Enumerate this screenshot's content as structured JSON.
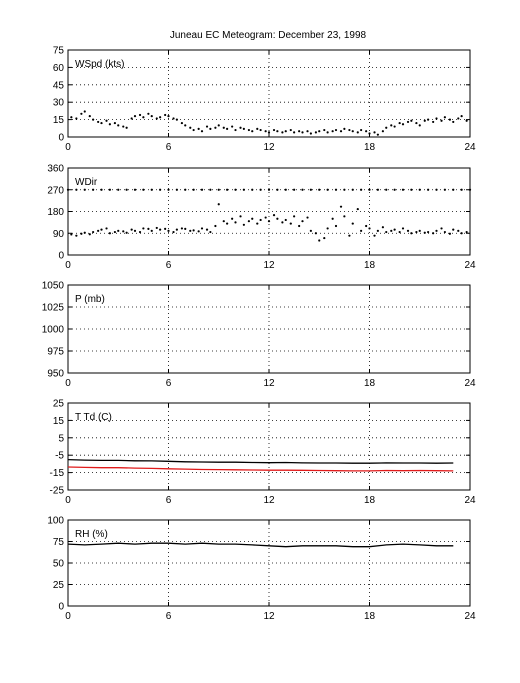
{
  "figure": {
    "title": "Juneau EC Meteogram:   December 23, 1998"
  },
  "chart_data": [
    {
      "type": "scatter",
      "panel_label": "WSpd (kts)",
      "xlim": [
        0,
        24
      ],
      "xticks": [
        0,
        6,
        12,
        18,
        24
      ],
      "ylim": [
        0,
        75
      ],
      "yticks": [
        0,
        15,
        30,
        45,
        60,
        75
      ],
      "grid": true,
      "series": [
        {
          "color": "#000000",
          "style": "dots",
          "x": [
            0.2,
            0.5,
            0.8,
            1.0,
            1.3,
            1.5,
            1.8,
            2.0,
            2.3,
            2.5,
            2.8,
            3.0,
            3.3,
            3.5,
            3.8,
            4.0,
            4.3,
            4.5,
            4.8,
            5.0,
            5.3,
            5.5,
            5.8,
            6.0,
            6.3,
            6.5,
            6.8,
            7.0,
            7.3,
            7.5,
            7.8,
            8.0,
            8.3,
            8.5,
            8.8,
            9.0,
            9.3,
            9.5,
            9.8,
            10.0,
            10.3,
            10.5,
            10.8,
            11.0,
            11.3,
            11.5,
            11.8,
            12.0,
            12.3,
            12.5,
            12.8,
            13.0,
            13.3,
            13.5,
            13.8,
            14.0,
            14.3,
            14.5,
            14.8,
            15.0,
            15.3,
            15.5,
            15.8,
            16.0,
            16.3,
            16.5,
            16.8,
            17.0,
            17.3,
            17.5,
            17.8,
            18.0,
            18.3,
            18.5,
            18.8,
            19.0,
            19.3,
            19.5,
            19.8,
            20.0,
            20.3,
            20.5,
            20.8,
            21.0,
            21.3,
            21.5,
            21.8,
            22.0,
            22.3,
            22.5,
            22.8,
            23.0,
            23.3,
            23.5,
            23.8
          ],
          "y": [
            17,
            16,
            20,
            22,
            18,
            15,
            13,
            12,
            14,
            11,
            12,
            10,
            9,
            8,
            16,
            18,
            19,
            17,
            20,
            18,
            16,
            17,
            19,
            18,
            16,
            15,
            12,
            10,
            8,
            6,
            7,
            5,
            9,
            7,
            8,
            10,
            8,
            7,
            9,
            6,
            8,
            7,
            6,
            5,
            7,
            6,
            5,
            4,
            6,
            5,
            4,
            5,
            6,
            4,
            5,
            4,
            5,
            3,
            4,
            5,
            6,
            4,
            5,
            6,
            5,
            7,
            6,
            5,
            4,
            6,
            5,
            3,
            4,
            2,
            5,
            8,
            10,
            9,
            12,
            11,
            13,
            14,
            12,
            10,
            14,
            15,
            13,
            16,
            14,
            17,
            15,
            13,
            16,
            18,
            14
          ]
        }
      ]
    },
    {
      "type": "scatter",
      "panel_label": "WDir",
      "xlim": [
        0,
        24
      ],
      "xticks": [
        0,
        6,
        12,
        18,
        24
      ],
      "ylim": [
        0,
        360
      ],
      "yticks": [
        0,
        90,
        180,
        270,
        360
      ],
      "grid": true,
      "series": [
        {
          "color": "#000000",
          "style": "dots",
          "x": [
            0.2,
            0.5,
            0.8,
            1.0,
            1.3,
            1.5,
            1.8,
            2.0,
            2.3,
            2.5,
            2.8,
            3.0,
            3.3,
            3.5,
            3.8,
            4.0,
            4.3,
            4.5,
            4.8,
            5.0,
            5.3,
            5.5,
            5.8,
            6.0,
            6.3,
            6.5,
            6.8,
            7.0,
            7.3,
            7.5,
            7.8,
            8.0,
            8.3,
            8.5,
            8.8,
            9.0,
            9.3,
            9.5,
            9.8,
            10.0,
            10.3,
            10.5,
            10.8,
            11.0,
            11.3,
            11.5,
            11.8,
            12.0,
            12.3,
            12.5,
            12.8,
            13.0,
            13.3,
            13.5,
            13.8,
            14.0,
            14.3,
            14.5,
            14.8,
            15.0,
            15.3,
            15.5,
            15.8,
            16.0,
            16.3,
            16.5,
            16.8,
            17.0,
            17.3,
            17.5,
            17.8,
            18.0,
            18.3,
            18.5,
            18.8,
            19.0,
            19.3,
            19.5,
            19.8,
            20.0,
            20.3,
            20.5,
            20.8,
            21.0,
            21.3,
            21.5,
            21.8,
            22.0,
            22.3,
            22.5,
            22.8,
            23.0,
            23.3,
            23.5,
            23.8
          ],
          "y": [
            85,
            80,
            88,
            92,
            86,
            95,
            100,
            105,
            110,
            90,
            95,
            100,
            98,
            92,
            105,
            100,
            95,
            110,
            108,
            100,
            112,
            105,
            108,
            100,
            95,
            105,
            110,
            108,
            100,
            102,
            98,
            110,
            105,
            95,
            120,
            210,
            140,
            130,
            150,
            135,
            160,
            125,
            140,
            150,
            130,
            145,
            155,
            140,
            165,
            150,
            135,
            145,
            130,
            160,
            120,
            140,
            155,
            100,
            90,
            60,
            70,
            110,
            150,
            120,
            200,
            160,
            80,
            130,
            190,
            100,
            120,
            110,
            80,
            100,
            115,
            95,
            100,
            105,
            95,
            110,
            100,
            90,
            95,
            100,
            92,
            95,
            90,
            100,
            110,
            95,
            88,
            105,
            100,
            90,
            95
          ]
        },
        {
          "color": "#000000",
          "style": "dots",
          "x": [
            0.0,
            0.5,
            1.0,
            1.5,
            2.0,
            2.5,
            3.0,
            3.5,
            4.0,
            4.5,
            5.0,
            5.5,
            6.0,
            6.5,
            7.0,
            7.5,
            8.0,
            8.5,
            9.0,
            9.5,
            10.0,
            10.5,
            11.0,
            11.5,
            12.0,
            12.5,
            13.0,
            13.5,
            14.0,
            14.5,
            15.0,
            15.5,
            16.0,
            16.5,
            17.0,
            17.5,
            18.0,
            18.5,
            19.0,
            19.5,
            20.0,
            20.5,
            21.0,
            21.5,
            22.0,
            22.5,
            23.0,
            23.5,
            24.0
          ],
          "y": [
            270,
            270,
            270,
            270,
            270,
            270,
            270,
            270,
            270,
            270,
            270,
            270,
            270,
            270,
            270,
            270,
            270,
            270,
            270,
            270,
            270,
            270,
            270,
            270,
            270,
            270,
            270,
            270,
            270,
            270,
            270,
            270,
            270,
            270,
            270,
            270,
            270,
            270,
            270,
            270,
            270,
            270,
            270,
            270,
            270,
            270,
            270,
            270,
            270
          ]
        }
      ]
    },
    {
      "type": "line",
      "panel_label": "P (mb)",
      "xlim": [
        0,
        24
      ],
      "xticks": [
        0,
        6,
        12,
        18,
        24
      ],
      "ylim": [
        950,
        1050
      ],
      "yticks": [
        950,
        975,
        1000,
        1025,
        1050
      ],
      "grid": true,
      "series": []
    },
    {
      "type": "line",
      "panel_label": "T Td (C)",
      "xlim": [
        0,
        24
      ],
      "xticks": [
        0,
        6,
        12,
        18,
        24
      ],
      "ylim": [
        -25,
        25
      ],
      "yticks": [
        -25,
        -15,
        -5,
        5,
        15,
        25
      ],
      "grid": true,
      "series": [
        {
          "color": "#000000",
          "x": [
            0,
            1,
            2,
            3,
            4,
            5,
            6,
            7,
            8,
            9,
            10,
            11,
            12,
            13,
            14,
            15,
            16,
            17,
            18,
            19,
            20,
            21,
            22,
            23
          ],
          "y": [
            -7.5,
            -7.8,
            -8.0,
            -8.0,
            -8.2,
            -8.3,
            -8.5,
            -8.8,
            -8.9,
            -9.0,
            -9.0,
            -9.2,
            -9.3,
            -9.2,
            -9.4,
            -9.5,
            -9.5,
            -9.6,
            -9.6,
            -9.4,
            -9.5,
            -9.5,
            -9.6,
            -9.5
          ]
        },
        {
          "color": "#e01a1a",
          "x": [
            0,
            1,
            2,
            3,
            4,
            5,
            6,
            7,
            8,
            9,
            10,
            11,
            12,
            13,
            14,
            15,
            16,
            17,
            18,
            19,
            20,
            21,
            22,
            23
          ],
          "y": [
            -11.8,
            -12.0,
            -12.2,
            -12.2,
            -12.4,
            -12.6,
            -12.8,
            -13.0,
            -13.2,
            -13.3,
            -13.4,
            -13.5,
            -13.6,
            -13.6,
            -13.7,
            -13.8,
            -13.9,
            -14.0,
            -14.0,
            -13.8,
            -13.9,
            -13.8,
            -13.9,
            -14.0
          ]
        }
      ]
    },
    {
      "type": "line",
      "panel_label": "RH (%)",
      "xlim": [
        0,
        24
      ],
      "xticks": [
        0,
        6,
        12,
        18,
        24
      ],
      "ylim": [
        0,
        100
      ],
      "yticks": [
        0,
        25,
        50,
        75,
        100
      ],
      "grid": true,
      "series": [
        {
          "color": "#000000",
          "x": [
            0,
            1,
            2,
            3,
            4,
            5,
            6,
            7,
            8,
            9,
            10,
            11,
            12,
            13,
            14,
            15,
            16,
            17,
            18,
            19,
            20,
            21,
            22,
            23
          ],
          "y": [
            72,
            71,
            72,
            73,
            72,
            73,
            73,
            72,
            73,
            72,
            72,
            71,
            70,
            69,
            70,
            70,
            70,
            69,
            69,
            71,
            72,
            71,
            70,
            70
          ]
        }
      ]
    }
  ]
}
